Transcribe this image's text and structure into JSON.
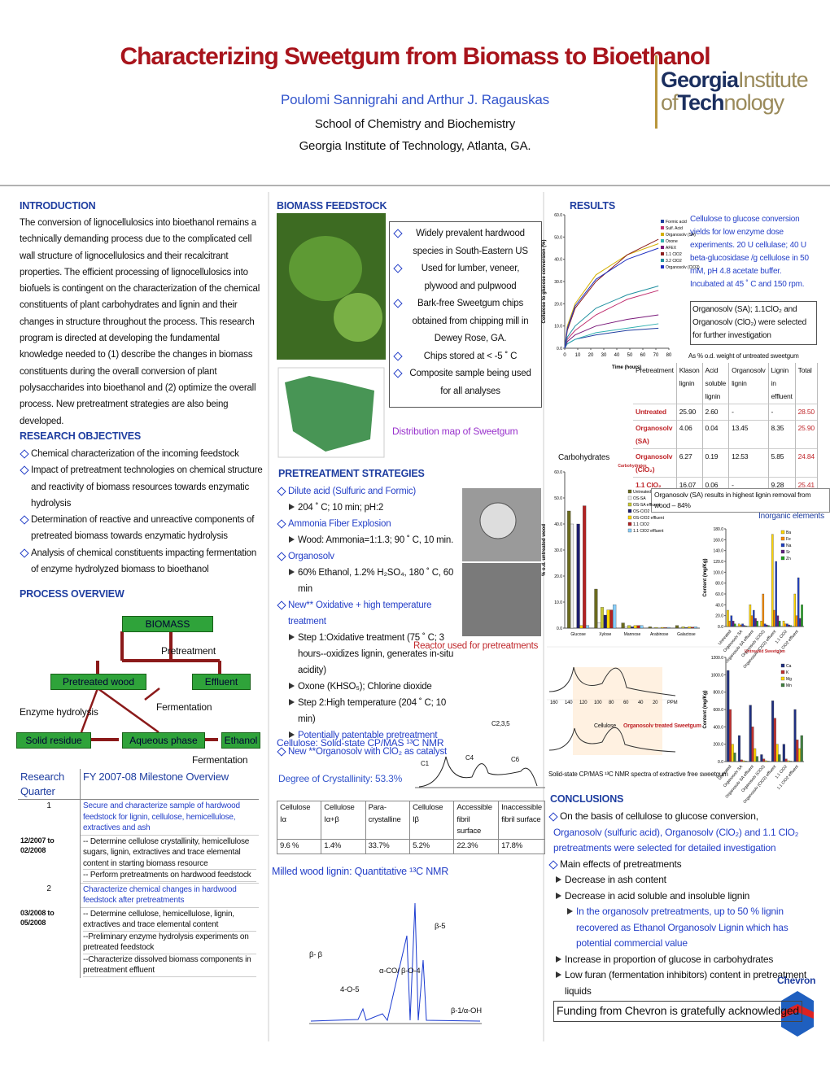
{
  "header": {
    "title": "Characterizing Sweetgum from Biomass to Bioethanol",
    "authors": "Poulomi Sannigrahi and Arthur J. Ragauskas",
    "department": "School of Chemistry and Biochemistry",
    "institution": "Georgia Institute of Technology, Atlanta, GA.",
    "logo": [
      "Georgia",
      "Institute",
      "of",
      "Tech",
      "nology"
    ]
  },
  "introduction": {
    "heading": "INTRODUCTION",
    "text": "The conversion of lignocellulosics into bioethanol remains a technically demanding process due to the complicated cell wall structure of lignocellulosics and their recalcitrant properties.  The efficient processing of lignocellulosics into biofuels is contingent on the characterization of the chemical constituents of plant carbohydrates and lignin and their changes in structure throughout the process.  This research program is directed at developing the fundamental knowledge needed to (1) describe the changes in biomass constituents during the overall conversion of plant polysaccharides into bioethanol and (2) optimize the overall process.  New pretreatment strategies are also being developed."
  },
  "objectives": {
    "heading": "RESEARCH OBJECTIVES",
    "items": [
      "Chemical characterization of the incoming feedstock",
      "Impact of pretreatment technologies on chemical structure and reactivity of biomass resources towards enzymatic hydrolysis",
      "Determination of reactive and unreactive components of pretreated biomass towards enzymatic hydrolysis",
      "Analysis of chemical constituents impacting fermentation of enzyme hydrolyzed biomass to bioethanol"
    ]
  },
  "process": {
    "heading": "PROCESS OVERVIEW",
    "nodes": [
      "BIOMASS",
      "Pretreatment",
      "Pretreated wood",
      "Effluent",
      "Enzyme hydrolysis",
      "Fermentation",
      "Solid residue",
      "Aqueous phase",
      "Ethanol",
      "Fermentation"
    ]
  },
  "milestones": {
    "headers": [
      "Research Quarter",
      "FY 2007-08 Milestone Overview"
    ],
    "rows": [
      {
        "number": "1",
        "quarter": "12/2007 to 02/2008",
        "goal": "Secure and characterize sample of hardwood feedstock for lignin, cellulose, hemicellulose, extractives and ash",
        "tasks": [
          "-- Determine cellulose crystallinity, hemicellulose sugars, lignin, extractives and trace elemental content in starting biomass resource",
          "-- Perform pretreatments on hardwood feedstock"
        ]
      },
      {
        "number": "2",
        "quarter": "03/2008 to 05/2008",
        "goal": "Characterize chemical changes in hardwood feedstock after pretreatments",
        "tasks": [
          "-- Determine cellulose, hemicellulose, lignin, extractives and trace elemental content",
          "--Preliminary enzyme hydrolysis experiments on pretreated feedstock",
          "--Characterize dissolved biomass components in pretreatment effluent"
        ]
      }
    ]
  },
  "feedstock": {
    "heading": "BIOMASS FEEDSTOCK",
    "bullets": [
      "Widely prevalent hardwood species in South-Eastern US",
      "Used for lumber, veneer, plywood and pulpwood",
      "Bark-free Sweetgum chips obtained from chipping mill in Dewey Rose, GA.",
      "Chips stored at < -5 ˚ C",
      "Composite sample being used for all analyses"
    ],
    "map_caption": "Distribution map of Sweetgum"
  },
  "pretreatment": {
    "heading": "PRETREATMENT STRATEGIES",
    "items": [
      {
        "title": "Dilute acid (Sulfuric and Formic)",
        "details": [
          "204 ˚ C; 10 min; pH:2"
        ]
      },
      {
        "title": "Ammonia Fiber Explosion",
        "details": [
          "Wood: Ammonia=1:1.3; 90 ˚ C, 10 min."
        ]
      },
      {
        "title": "Organosolv",
        "details": [
          "60% Ethanol, 1.2% H₂SO₄, 180 ˚ C, 60 min"
        ]
      },
      {
        "title": "New** Oxidative + high temperature treatment",
        "details": [
          "Step 1:Oxidative treatment (75 ˚ C; 3 hours--oxidizes lignin, generates in-situ acidity)",
          "Oxone (KHSO₅); Chlorine dioxide",
          "Step 2:High temperature (204 ˚ C; 10 min)",
          "Potentially patentable pretreatment"
        ]
      },
      {
        "title": "New **Organosolv with ClO₂ as catalyst",
        "details": []
      }
    ],
    "reactor_caption": "Reactor used for pretreatments"
  },
  "nmr": {
    "cellulose_title": "Cellulose: Solid-state CP/MAS ¹³C NMR",
    "peaks": [
      "C1",
      "C4",
      "C6",
      "C2,3,5"
    ],
    "crystallinity": "Degree of Crystallinity: 53.3%",
    "table": {
      "headers": [
        "Cellulose Iα",
        "Cellulose Iα+β",
        "Para-crystalline",
        "Cellulose Iβ",
        "Accessible fibril surface",
        "Inaccessible fibril surface"
      ],
      "values": [
        "9.6 %",
        "1.4%",
        "33.7%",
        "5.2%",
        "22.3%",
        "17.8%"
      ]
    },
    "lignin_title": "Milled wood lignin: Quantitative ¹³C NMR",
    "lignin_labels": [
      "β-5",
      "β- β",
      "α-CO/ β-O-4",
      "4-O-5",
      "β-1/α-OH"
    ]
  },
  "results": {
    "heading": "RESULTS",
    "conversion_chart": {
      "type": "line",
      "ylabel": "Cellulose to glucose conversion (%)",
      "xlabel": "Time (hours)",
      "x": [
        0,
        2,
        8,
        24,
        48,
        72
      ],
      "xlim": [
        0,
        80
      ],
      "xticks": [
        0,
        10,
        20,
        30,
        40,
        50,
        60,
        70,
        80
      ],
      "ylim": [
        0,
        60
      ],
      "yticks": [
        {
          "value": 0,
          "label": "0.0"
        },
        {
          "value": 10,
          "label": "10.0"
        },
        {
          "value": 20,
          "label": "20.0"
        },
        {
          "value": 30,
          "label": "30.0"
        },
        {
          "value": 40,
          "label": "40.0"
        },
        {
          "value": 50,
          "label": "50.0"
        },
        {
          "value": 60,
          "label": "60.0"
        }
      ],
      "series": [
        {
          "name": "Formic acid",
          "color": "#1f3ea0",
          "values": [
            0,
            2,
            4,
            6,
            8,
            9
          ]
        },
        {
          "name": "Sulf. Acid",
          "color": "#c03070",
          "values": [
            0,
            4,
            8,
            15,
            22,
            26
          ]
        },
        {
          "name": "Organosolv (SA)",
          "color": "#d4b000",
          "values": [
            0,
            10,
            20,
            33,
            42,
            47
          ]
        },
        {
          "name": "Oxone",
          "color": "#30b0b0",
          "values": [
            0,
            2,
            4,
            7,
            9,
            11
          ]
        },
        {
          "name": "AFEX",
          "color": "#7a1a7a",
          "values": [
            0,
            3,
            6,
            10,
            13,
            15
          ]
        },
        {
          "name": "1.1 ClO2",
          "color": "#8b2020",
          "values": [
            0,
            8,
            18,
            30,
            42,
            49
          ]
        },
        {
          "name": "3.2 ClO2",
          "color": "#2090a0",
          "values": [
            0,
            5,
            10,
            18,
            24,
            28
          ]
        },
        {
          "name": "Organosolv (ClO2)",
          "color": "#2030c0",
          "values": [
            0,
            9,
            19,
            31,
            40,
            45
          ]
        }
      ]
    },
    "conversion_note": "Cellulose to glucose conversion yields for low enzyme dose experiments. 20 U cellulase; 40 U beta-glucosidase /g cellulose in 50 mM, pH 4.8 acetate buffer. Incubated at 45 ˚ C and 150 rpm.",
    "selection_note": "Organosolv (SA); 1.1ClO₂ and Organosolv (ClO₂) were selected for further investigation",
    "composition": {
      "caption": "As % o.d. weight of untreated sweetgum",
      "headers": [
        "Pretreatment",
        "Klason lignin",
        "Acid soluble lignin",
        "Organosolv lignin",
        "Lignin in effluent",
        "Total"
      ],
      "rows": [
        [
          "Untreated",
          "25.90",
          "2.60",
          "-",
          "-",
          "28.50"
        ],
        [
          "Organosolv (SA)",
          "4.06",
          "0.04",
          "13.45",
          "8.35",
          "25.90"
        ],
        [
          "Organosolv (ClO₂)",
          "6.27",
          "0.19",
          "12.53",
          "5.85",
          "24.84"
        ],
        [
          "1.1 ClO₂",
          "16.07",
          "0.06",
          "-",
          "9.28",
          "25.41"
        ]
      ]
    },
    "carbohydrates": {
      "type": "bar",
      "title": "Carbohydrates",
      "ylabel": "% o.d. untreated wood",
      "categories": [
        "Glucose",
        "Xylose",
        "Mannose",
        "Arabinose",
        "Galactose"
      ],
      "ylim": [
        0,
        60
      ],
      "yticks": [
        {
          "value": 0,
          "label": "0.0"
        },
        {
          "value": 10,
          "label": "10.0"
        },
        {
          "value": 20,
          "label": "20.0"
        },
        {
          "value": 30,
          "label": "30.0"
        },
        {
          "value": 40,
          "label": "40.0"
        },
        {
          "value": 50,
          "label": "50.0"
        },
        {
          "value": 60,
          "label": "60.0"
        }
      ],
      "series": [
        {
          "name": "Untreated",
          "color": "#6b6b1e",
          "values": [
            45,
            15,
            2,
            0.5,
            1
          ]
        },
        {
          "name": "OS-SA",
          "color": "#f0f0f0",
          "values": [
            40,
            2,
            0.5,
            0,
            0.2
          ]
        },
        {
          "name": "OS-SA effluent",
          "color": "#c8c832",
          "values": [
            0,
            8,
            1,
            0.3,
            0.5
          ]
        },
        {
          "name": "OS-ClO2",
          "color": "#1c1c6e",
          "values": [
            40,
            5,
            0.5,
            0,
            0.2
          ]
        },
        {
          "name": "OS-ClO2 effluent",
          "color": "#ffd700",
          "values": [
            1,
            7,
            1,
            0.3,
            0.5
          ]
        },
        {
          "name": "1.1 ClO2",
          "color": "#b22222",
          "values": [
            47,
            7,
            1,
            0.2,
            0.4
          ]
        },
        {
          "name": "1.1 ClO2 effluent",
          "color": "#87cefa",
          "values": [
            1,
            9,
            1,
            0.3,
            0.5
          ]
        }
      ]
    },
    "lignin_note": "Organosolv (SA) results in highest lignin removal from wood – 84%",
    "inorganic_title": "Inorganic elements",
    "inorganic_minor": {
      "type": "bar",
      "ylabel": "Content (mg/Kg)",
      "categories": [
        "Untreated",
        "Organosolv SA",
        "Organosolv SA effluent",
        "Organosolv (ClO2)",
        "Organosolv (ClO2) effluent",
        "1.1 ClO2",
        "1.1 ClO2 effluent"
      ],
      "ylim": [
        0,
        180
      ],
      "yticks": [
        {
          "value": 0,
          "label": "0.0"
        },
        {
          "value": 20,
          "label": "20.0"
        },
        {
          "value": 40,
          "label": "40.0"
        },
        {
          "value": 60,
          "label": "60.0"
        },
        {
          "value": 80,
          "label": "80.0"
        },
        {
          "value": 100,
          "label": "100.0"
        },
        {
          "value": 120,
          "label": "120.0"
        },
        {
          "value": 140,
          "label": "140.0"
        },
        {
          "value": 160,
          "label": "160.0"
        },
        {
          "value": 180,
          "label": "180.0"
        }
      ],
      "series": [
        {
          "name": "Ba",
          "color": "#ffd700",
          "values": [
            30,
            5,
            40,
            10,
            170,
            10,
            60
          ]
        },
        {
          "name": "Fe",
          "color": "#ff8c00",
          "values": [
            10,
            3,
            20,
            60,
            30,
            5,
            20
          ]
        },
        {
          "name": "Na",
          "color": "#2040c0",
          "values": [
            20,
            5,
            30,
            5,
            120,
            5,
            90
          ]
        },
        {
          "name": "Sr",
          "color": "#602080",
          "values": [
            10,
            2,
            15,
            3,
            20,
            3,
            15
          ]
        },
        {
          "name": "Zn",
          "color": "#20a020",
          "values": [
            5,
            1,
            10,
            2,
            10,
            2,
            40
          ]
        }
      ]
    },
    "inorganic_major": {
      "type": "bar",
      "ylabel": "Content (mg/Kg)",
      "title": "Untreated Sweetgum",
      "categories": [
        "Untreated",
        "Organosolv SA",
        "Organosolv SA effluent",
        "Organosolv (ClO2)",
        "Organosolv (ClO2) effluent",
        "1.1 ClO2",
        "1.1 ClO2 effluent"
      ],
      "ylim": [
        0,
        1200
      ],
      "yticks": [
        {
          "value": 0,
          "label": "0.0"
        },
        {
          "value": 200,
          "label": "200.0"
        },
        {
          "value": 400,
          "label": "400.0"
        },
        {
          "value": 600,
          "label": "600.0"
        },
        {
          "value": 800,
          "label": "800.0"
        },
        {
          "value": 1000,
          "label": "1000.0"
        },
        {
          "value": 1200,
          "label": "1200.0"
        }
      ],
      "series": [
        {
          "name": "Ca",
          "color": "#203080",
          "values": [
            1050,
            300,
            650,
            80,
            700,
            200,
            600
          ]
        },
        {
          "name": "K",
          "color": "#c03030",
          "values": [
            600,
            20,
            400,
            30,
            500,
            30,
            250
          ]
        },
        {
          "name": "Mg",
          "color": "#ffd700",
          "values": [
            200,
            10,
            150,
            10,
            200,
            10,
            150
          ]
        },
        {
          "name": "Mn",
          "color": "#408040",
          "values": [
            100,
            5,
            60,
            5,
            80,
            5,
            300
          ]
        }
      ]
    },
    "spectra": {
      "labels": [
        "Cellulose",
        "Organosolv treated Sweetgum"
      ],
      "ppm_ticks": [
        "160",
        "140",
        "120",
        "100",
        "80",
        "60",
        "40",
        "20",
        "PPM"
      ],
      "caption": "Solid-state CP/MAS ¹³C NMR spectra of extractive free sweetgum"
    }
  },
  "conclusions": {
    "heading": "CONCLUSIONS",
    "items": [
      {
        "text": "On the basis of cellulose to glucose conversion,",
        "details": [
          "Organosolv (sulfuric acid), Organosolv (ClO₂) and 1.1 ClO₂ pretreatments were selected for detailed investigation"
        ]
      },
      {
        "text": "Main effects of pretreatments",
        "details": [
          "Decrease in ash content",
          "Decrease in acid soluble and insoluble lignin",
          "In the organosolv pretreatments, up to 50 % lignin recovered as Ethanol Organosolv Lignin which has potential commercial value",
          "Increase in proportion of glucose in carbohydrates",
          "Low furan (fermentation inhibitors) content in pretreatment liquids"
        ]
      }
    ]
  },
  "funding": "Funding from Chevron is gratefully acknowledged",
  "sponsor": "Chevron"
}
